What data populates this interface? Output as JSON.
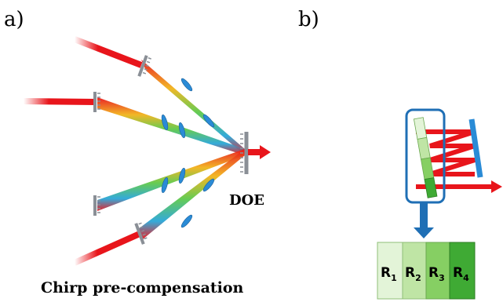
{
  "panel_a": {
    "label": "a)",
    "element_label": "DOE",
    "caption": "Chirp pre-compensation"
  },
  "panel_b": {
    "label": "b)",
    "cells": [
      {
        "main": "R",
        "sub": "1",
        "color": "#e3f4d8"
      },
      {
        "main": "R",
        "sub": "2",
        "color": "#bfe5a5"
      },
      {
        "main": "R",
        "sub": "3",
        "color": "#86cf63"
      },
      {
        "main": "R",
        "sub": "4",
        "color": "#3faa34"
      }
    ]
  },
  "colors": {
    "beam": "#e8151b",
    "grating": "#8a8f96",
    "lens": "#2a8bd6",
    "mirror": "#2a8bd6",
    "arrow": "#1f6fb5"
  }
}
